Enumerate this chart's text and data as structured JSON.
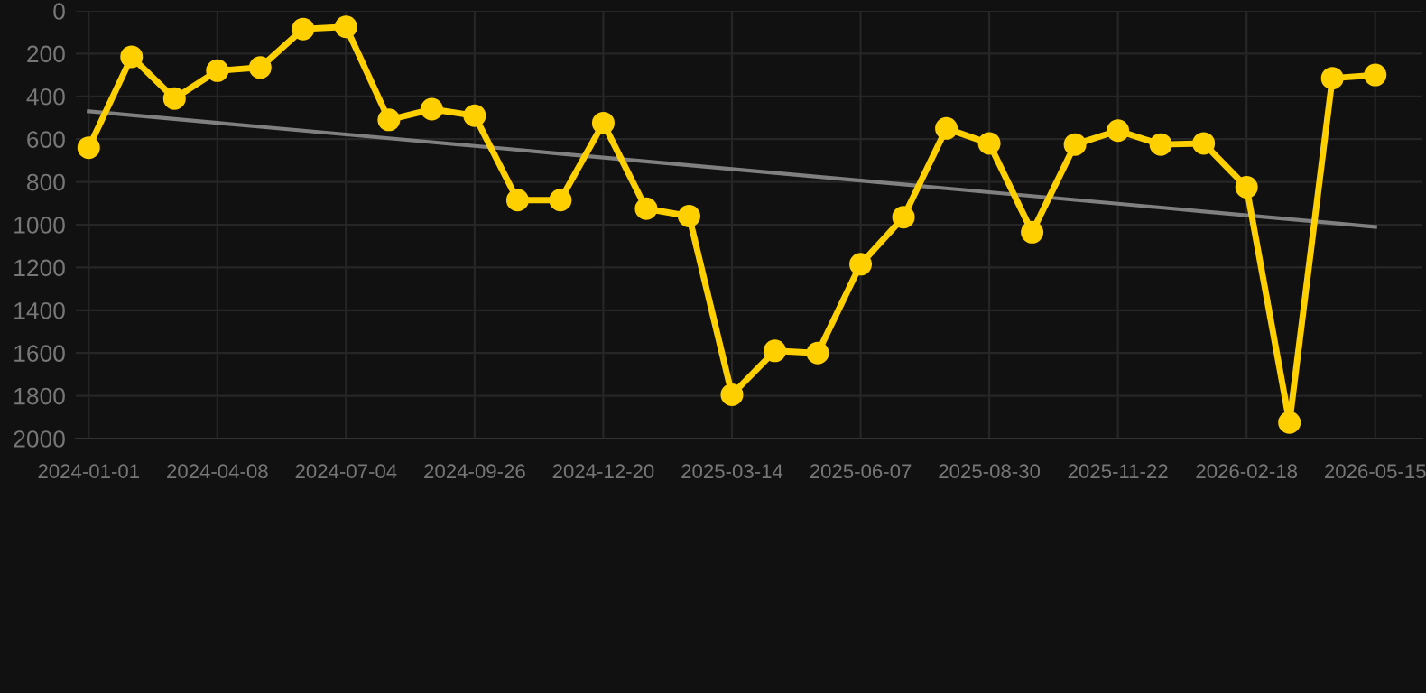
{
  "chart_data": {
    "type": "line",
    "categories": [
      "2024-01-01",
      null,
      null,
      "2024-04-08",
      null,
      null,
      "2024-07-04",
      null,
      null,
      "2024-09-26",
      null,
      null,
      "2024-12-20",
      null,
      null,
      "2025-03-14",
      null,
      null,
      "2025-06-07",
      null,
      null,
      "2025-08-30",
      null,
      null,
      "2025-11-22",
      null,
      null,
      "2026-02-18",
      null,
      null,
      "2026-05-15"
    ],
    "series": [
      {
        "color": "#ffd000",
        "marker": "circle",
        "values": [
          640,
          215,
          410,
          280,
          265,
          85,
          75,
          510,
          460,
          490,
          885,
          885,
          525,
          925,
          960,
          1795,
          1590,
          1600,
          1185,
          965,
          550,
          620,
          1035,
          625,
          560,
          625,
          620,
          825,
          1925,
          315,
          300
        ]
      },
      {
        "type": "line",
        "color": "#808080",
        "marker": "none",
        "values": [
          470,
          488,
          506,
          524,
          542,
          560,
          578,
          596,
          614,
          632,
          650,
          668,
          686,
          704,
          722,
          740,
          758,
          776,
          794,
          812,
          830,
          848,
          866,
          884,
          902,
          920,
          938,
          956,
          974,
          992,
          1010
        ]
      }
    ],
    "ylim": [
      2000,
      0
    ],
    "yticks": [
      0,
      200,
      400,
      600,
      800,
      1000,
      1200,
      1400,
      1600,
      1800,
      2000
    ],
    "grid": true,
    "line_style": "solid"
  }
}
